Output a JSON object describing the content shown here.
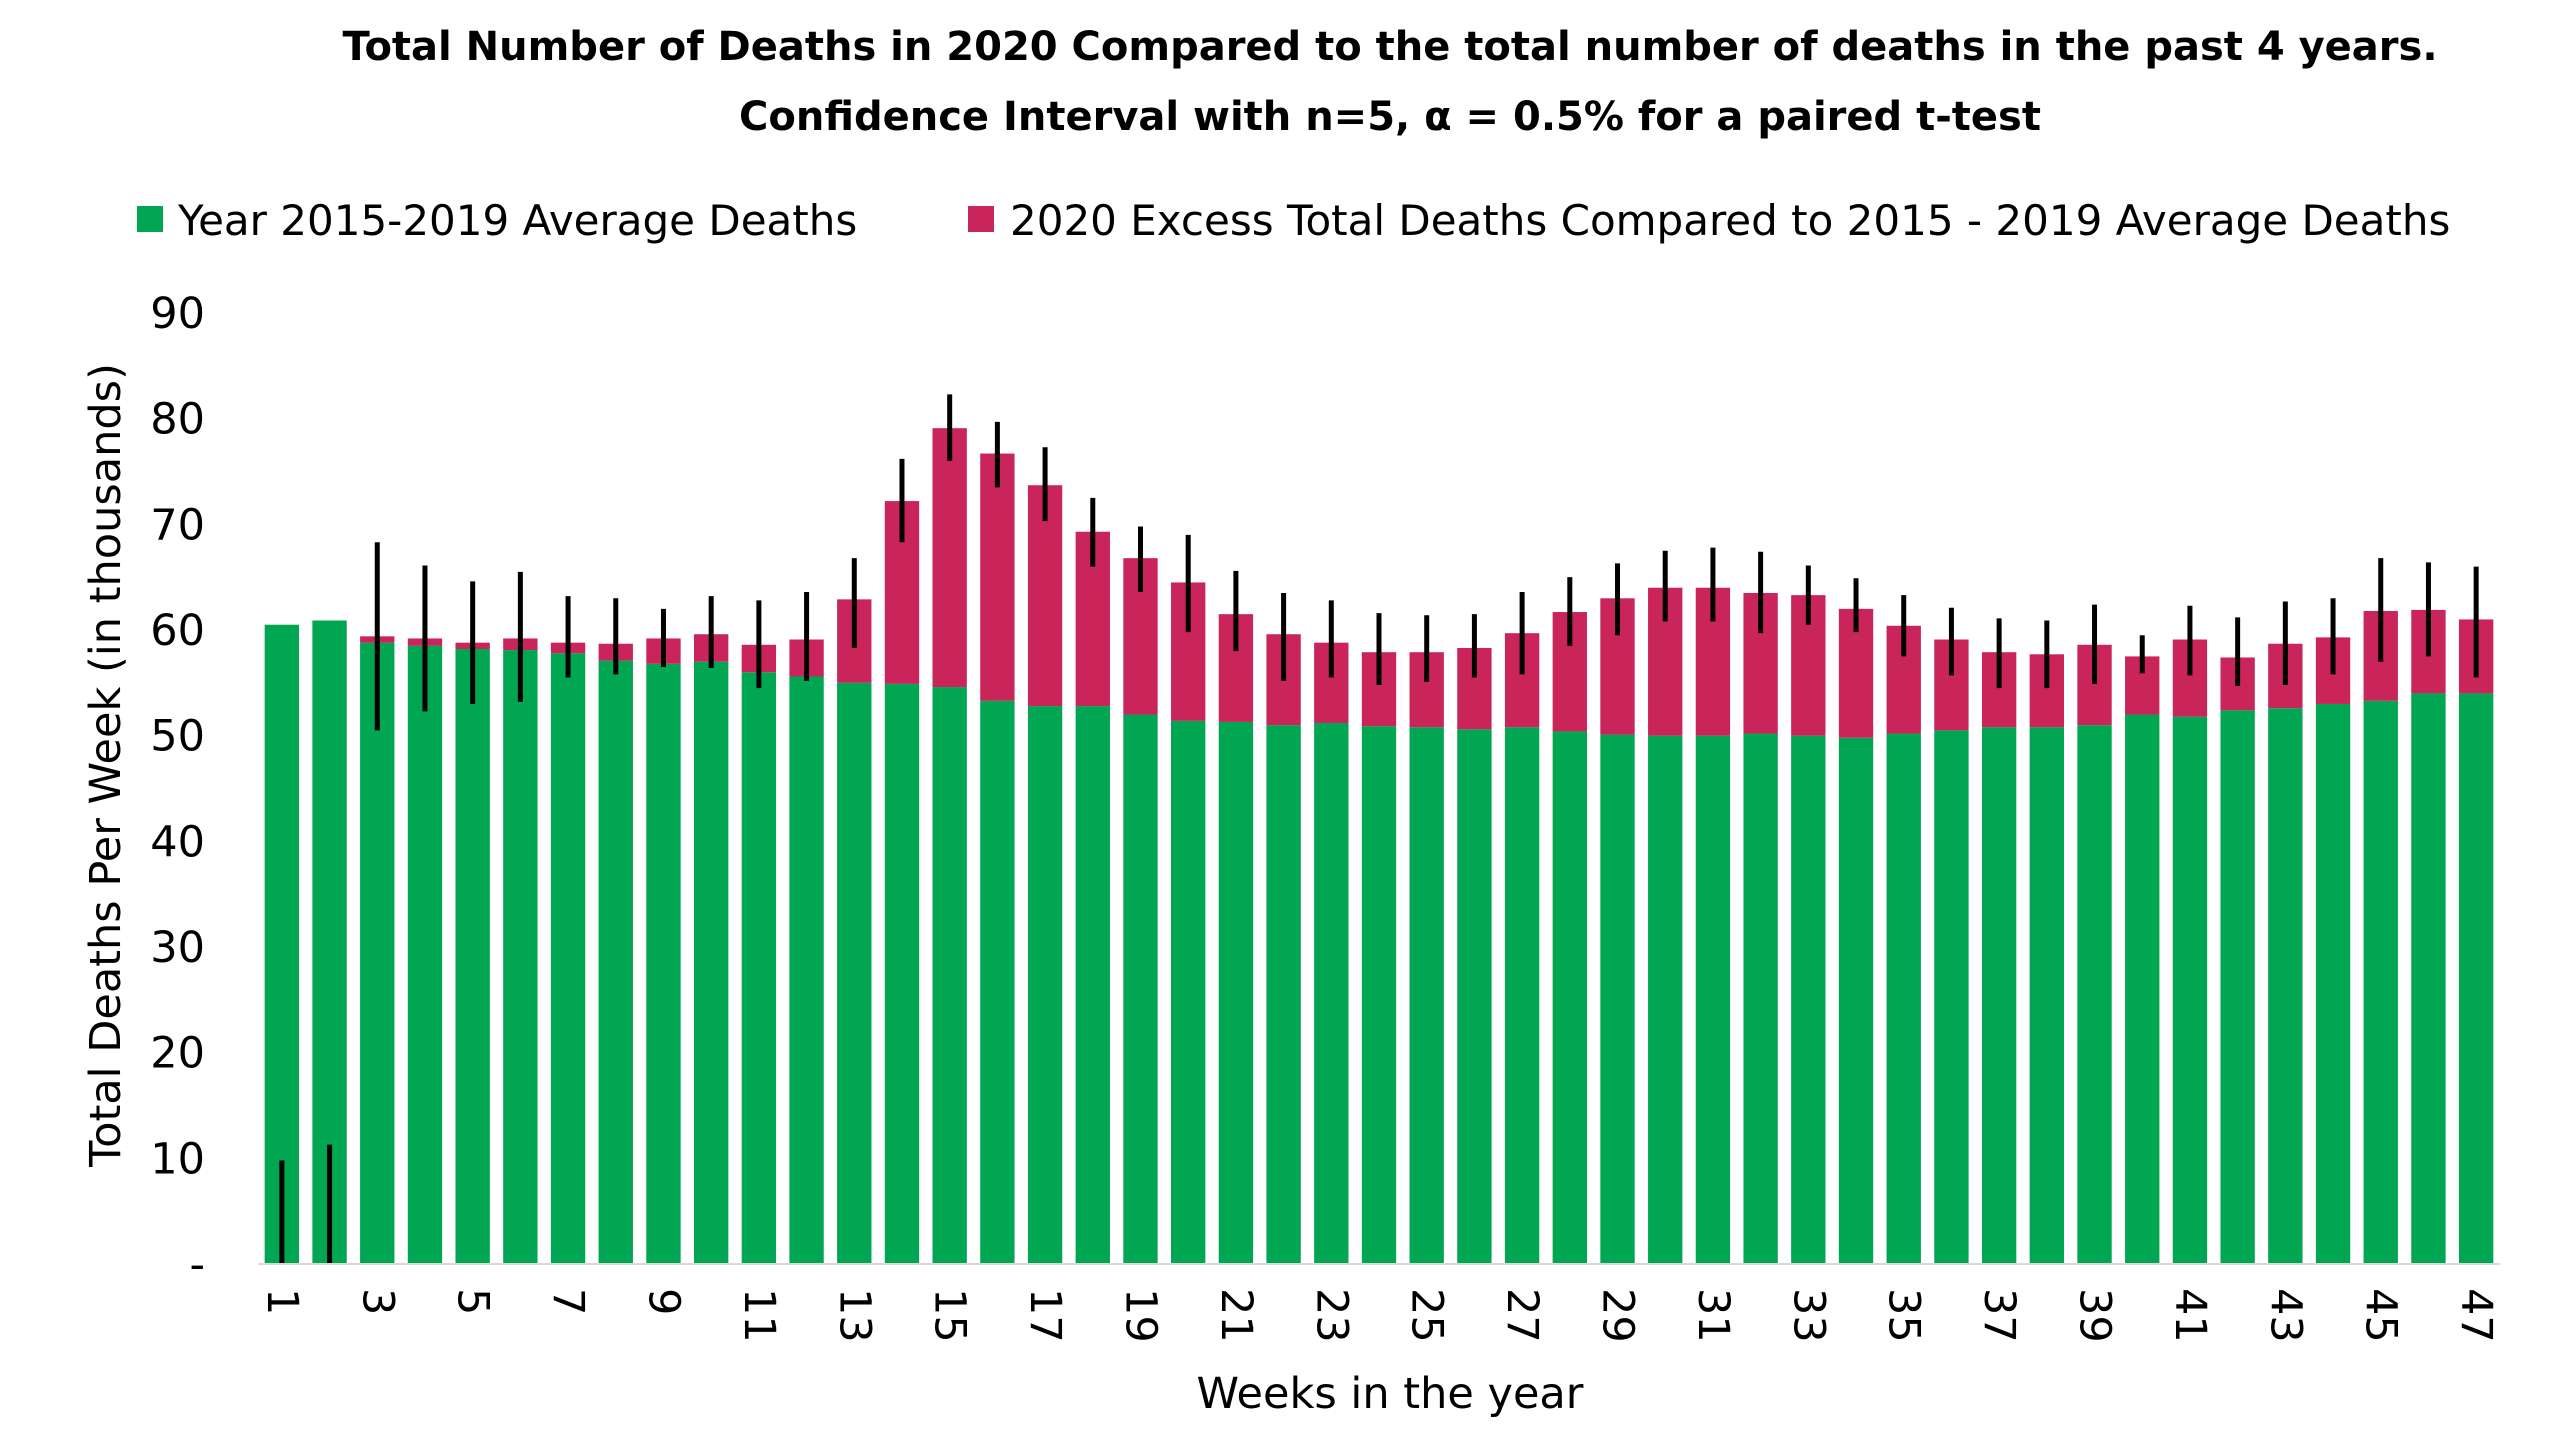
{
  "chart_data": {
    "type": "bar",
    "stacked": true,
    "title": "Total Number of Deaths in 2020 Compared to the total number of deaths in the past 4 years.",
    "subtitle": "Confidence Interval with n=5, α = 0.5% for a paired t-test",
    "xlabel": "Weeks in the year",
    "ylabel": "Total Deaths Per Week (in thousands)",
    "ylim": [
      0,
      90
    ],
    "yticks": [
      0,
      10,
      20,
      30,
      40,
      50,
      60,
      70,
      80,
      90
    ],
    "ytick_labels": [
      "-",
      "10",
      "20",
      "30",
      "40",
      "50",
      "60",
      "70",
      "80",
      "90"
    ],
    "legend_position": "top-center",
    "grid": false,
    "categories": [
      1,
      2,
      3,
      4,
      5,
      6,
      7,
      8,
      9,
      10,
      11,
      12,
      13,
      14,
      15,
      16,
      17,
      18,
      19,
      20,
      21,
      22,
      23,
      24,
      25,
      26,
      27,
      28,
      29,
      30,
      31,
      32,
      33,
      34,
      35,
      36,
      37,
      38,
      39,
      40,
      41,
      42,
      43,
      44,
      45,
      46,
      47
    ],
    "xtick_labels": [
      "1",
      "3",
      "5",
      "7",
      "9",
      "11",
      "13",
      "15",
      "17",
      "19",
      "21",
      "23",
      "25",
      "27",
      "29",
      "31",
      "33",
      "35",
      "37",
      "39",
      "41",
      "43",
      "45",
      "47"
    ],
    "series": [
      {
        "name": "Year 2015-2019 Average Deaths",
        "color": "#00A651",
        "values": [
          60.5,
          60.9,
          58.8,
          58.5,
          58.2,
          58.1,
          57.8,
          57.1,
          56.8,
          57.0,
          56.0,
          55.6,
          55.0,
          54.9,
          54.6,
          53.3,
          52.8,
          52.8,
          52.0,
          51.4,
          51.3,
          51.0,
          51.2,
          50.9,
          50.8,
          50.6,
          50.8,
          50.4,
          50.1,
          50.0,
          50.0,
          50.2,
          50.0,
          49.8,
          50.2,
          50.5,
          50.8,
          50.8,
          51.0,
          52.0,
          51.8,
          52.4,
          52.6,
          53.0,
          53.3,
          54.0,
          54.0
        ]
      },
      {
        "name": "2020 Excess Total Deaths Compared to 2015 - 2019 Average Deaths",
        "color": "#C9255A",
        "values": [
          0,
          0,
          0.6,
          0.7,
          0.6,
          1.1,
          1.0,
          1.6,
          2.4,
          2.6,
          2.6,
          3.5,
          7.9,
          17.3,
          24.5,
          23.4,
          20.9,
          16.5,
          14.8,
          13.1,
          10.2,
          8.6,
          7.6,
          7.0,
          7.1,
          7.7,
          8.9,
          11.3,
          12.9,
          14.0,
          14.0,
          13.3,
          13.3,
          12.2,
          10.2,
          8.6,
          7.1,
          6.9,
          7.6,
          5.5,
          7.3,
          5.0,
          6.1,
          6.3,
          8.5,
          7.9,
          7.0
        ]
      }
    ],
    "error_bars": {
      "color": "#000000",
      "low": [
        0,
        0,
        50.5,
        52.3,
        53.0,
        53.2,
        55.5,
        55.8,
        56.5,
        56.4,
        54.5,
        55.2,
        58.3,
        68.3,
        76.0,
        73.5,
        70.3,
        66.0,
        63.6,
        59.8,
        58.0,
        55.2,
        55.5,
        54.8,
        55.1,
        55.5,
        55.8,
        58.5,
        59.5,
        60.8,
        60.8,
        59.7,
        60.5,
        59.8,
        57.5,
        55.7,
        54.5,
        54.5,
        54.9,
        55.9,
        55.7,
        54.7,
        54.8,
        55.8,
        57.0,
        57.5,
        55.5
      ],
      "high": [
        9.8,
        11.3,
        68.3,
        66.1,
        64.6,
        65.5,
        63.2,
        63.0,
        62.0,
        63.2,
        62.8,
        63.6,
        66.8,
        76.2,
        82.3,
        79.7,
        77.3,
        72.5,
        69.8,
        69.0,
        65.6,
        63.5,
        62.8,
        61.6,
        61.4,
        61.5,
        63.6,
        65.0,
        66.3,
        67.5,
        67.8,
        67.4,
        66.1,
        64.9,
        63.3,
        62.1,
        61.1,
        60.9,
        62.4,
        59.5,
        62.3,
        61.2,
        62.7,
        63.0,
        66.8,
        66.4,
        66.0
      ]
    }
  }
}
